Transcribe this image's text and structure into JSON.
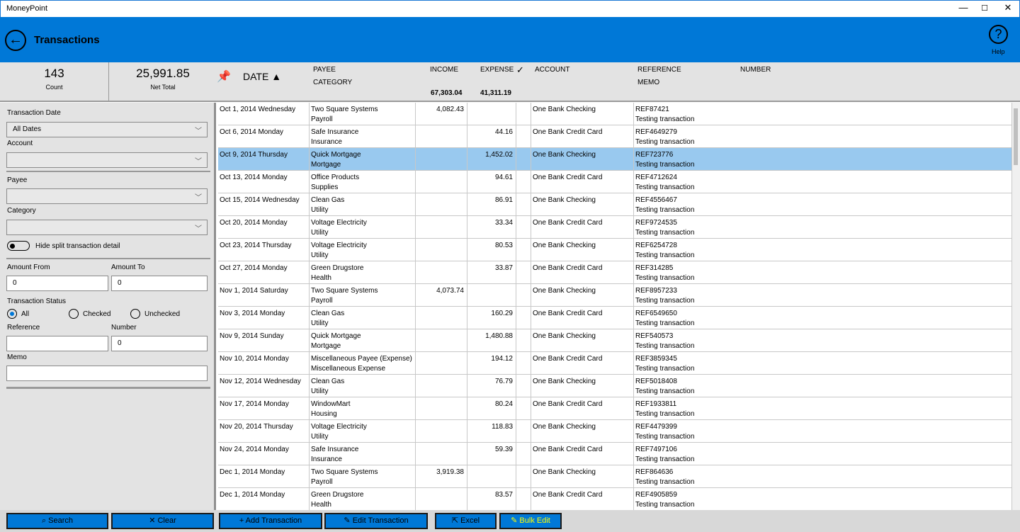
{
  "app": {
    "title": "MoneyPoint",
    "window_controls": [
      "—",
      "☐",
      "✕"
    ]
  },
  "header": {
    "title": "Transactions",
    "help_label": "Help",
    "back_icon": "back-arrow-icon",
    "help_icon": "question-icon",
    "color": "#0078d7"
  },
  "summary": {
    "count": "143",
    "count_label": "Count",
    "net_total": "25,991.85",
    "net_total_label": "Net Total",
    "sort_label": "DATE ▲",
    "col_payee": "PAYEE",
    "col_category": "CATEGORY",
    "col_income": "INCOME",
    "col_expense": "EXPENSE",
    "col_check": "✓",
    "col_account": "ACCOUNT",
    "col_reference": "REFERENCE",
    "col_memo": "MEMO",
    "col_number": "NUMBER",
    "income_total": "67,303.04",
    "expense_total": "41,311.19"
  },
  "filters": {
    "transaction_date_label": "Transaction Date",
    "transaction_date_value": "All Dates",
    "account_label": "Account",
    "account_value": "",
    "payee_label": "Payee",
    "payee_value": "",
    "category_label": "Category",
    "category_value": "",
    "hide_split_label": "Hide split transaction detail",
    "hide_split_on": false,
    "amount_from_label": "Amount From",
    "amount_from_value": "0",
    "amount_to_label": "Amount To",
    "amount_to_value": "0",
    "status_label": "Transaction Status",
    "status_options": [
      "All",
      "Checked",
      "Unchecked"
    ],
    "status_selected": "All",
    "reference_label": "Reference",
    "reference_value": "",
    "number_label": "Number",
    "number_value": "0",
    "memo_label": "Memo",
    "memo_value": ""
  },
  "transactions": [
    {
      "date": "Oct 1, 2014 Wednesday",
      "payee": "Two Square Systems",
      "category": "Payroll",
      "income": "4,082.43",
      "expense": "",
      "account": "One Bank Checking",
      "reference": "REF87421",
      "memo": "Testing transaction"
    },
    {
      "date": "Oct 6, 2014 Monday",
      "payee": "Safe Insurance",
      "category": "Insurance",
      "income": "",
      "expense": "44.16",
      "account": "One Bank Credit Card",
      "reference": "REF4649279",
      "memo": "Testing transaction"
    },
    {
      "date": "Oct 9, 2014 Thursday",
      "payee": "Quick Mortgage",
      "category": "Mortgage",
      "income": "",
      "expense": "1,452.02",
      "account": "One Bank Checking",
      "reference": "REF723776",
      "memo": "Testing transaction",
      "selected": true
    },
    {
      "date": "Oct 13, 2014 Monday",
      "payee": "Office Products",
      "category": "Supplies",
      "income": "",
      "expense": "94.61",
      "account": "One Bank Credit Card",
      "reference": "REF4712624",
      "memo": "Testing transaction"
    },
    {
      "date": "Oct 15, 2014 Wednesday",
      "payee": "Clean Gas",
      "category": "Utility",
      "income": "",
      "expense": "86.91",
      "account": "One Bank Checking",
      "reference": "REF4556467",
      "memo": "Testing transaction"
    },
    {
      "date": "Oct 20, 2014 Monday",
      "payee": "Voltage Electricity",
      "category": "Utility",
      "income": "",
      "expense": "33.34",
      "account": "One Bank Credit Card",
      "reference": "REF9724535",
      "memo": "Testing transaction"
    },
    {
      "date": "Oct 23, 2014 Thursday",
      "payee": "Voltage Electricity",
      "category": "Utility",
      "income": "",
      "expense": "80.53",
      "account": "One Bank Checking",
      "reference": "REF6254728",
      "memo": "Testing transaction"
    },
    {
      "date": "Oct 27, 2014 Monday",
      "payee": "Green Drugstore",
      "category": "Health",
      "income": "",
      "expense": "33.87",
      "account": "One Bank Credit Card",
      "reference": "REF314285",
      "memo": "Testing transaction"
    },
    {
      "date": "Nov 1, 2014 Saturday",
      "payee": "Two Square Systems",
      "category": "Payroll",
      "income": "4,073.74",
      "expense": "",
      "account": "One Bank Checking",
      "reference": "REF8957233",
      "memo": "Testing transaction"
    },
    {
      "date": "Nov 3, 2014 Monday",
      "payee": "Clean Gas",
      "category": "Utility",
      "income": "",
      "expense": "160.29",
      "account": "One Bank Credit Card",
      "reference": "REF6549650",
      "memo": "Testing transaction"
    },
    {
      "date": "Nov 9, 2014 Sunday",
      "payee": "Quick Mortgage",
      "category": "Mortgage",
      "income": "",
      "expense": "1,480.88",
      "account": "One Bank Checking",
      "reference": "REF540573",
      "memo": "Testing transaction"
    },
    {
      "date": "Nov 10, 2014 Monday",
      "payee": "Miscellaneous Payee (Expense)",
      "category": "Miscellaneous Expense",
      "income": "",
      "expense": "194.12",
      "account": "One Bank Credit Card",
      "reference": "REF3859345",
      "memo": "Testing transaction"
    },
    {
      "date": "Nov 12, 2014 Wednesday",
      "payee": "Clean Gas",
      "category": "Utility",
      "income": "",
      "expense": "76.79",
      "account": "One Bank Checking",
      "reference": "REF5018408",
      "memo": "Testing transaction"
    },
    {
      "date": "Nov 17, 2014 Monday",
      "payee": "WindowMart",
      "category": "Housing",
      "income": "",
      "expense": "80.24",
      "account": "One Bank Credit Card",
      "reference": "REF1933811",
      "memo": "Testing transaction"
    },
    {
      "date": "Nov 20, 2014 Thursday",
      "payee": "Voltage Electricity",
      "category": "Utility",
      "income": "",
      "expense": "118.83",
      "account": "One Bank Checking",
      "reference": "REF4479399",
      "memo": "Testing transaction"
    },
    {
      "date": "Nov 24, 2014 Monday",
      "payee": "Safe Insurance",
      "category": "Insurance",
      "income": "",
      "expense": "59.39",
      "account": "One Bank Credit Card",
      "reference": "REF7497106",
      "memo": "Testing transaction"
    },
    {
      "date": "Dec 1, 2014 Monday",
      "payee": "Two Square Systems",
      "category": "Payroll",
      "income": "3,919.38",
      "expense": "",
      "account": "One Bank Checking",
      "reference": "REF864636",
      "memo": "Testing transaction"
    },
    {
      "date": "Dec 1, 2014 Monday",
      "payee": "Green Drugstore",
      "category": "Health",
      "income": "",
      "expense": "83.57",
      "account": "One Bank Credit Card",
      "reference": "REF4905859",
      "memo": "Testing transaction"
    }
  ],
  "buttons": {
    "search": "⌕ Search",
    "clear": "✕ Clear",
    "add": "+ Add Transaction",
    "edit": "✎ Edit Transaction",
    "excel": "⇱ Excel",
    "bulk_edit": "✎ Bulk Edit"
  },
  "colors": {
    "accent": "#0078d7",
    "selected_row": "#99c9ef",
    "bulk_edit_text": "#ffff00"
  }
}
